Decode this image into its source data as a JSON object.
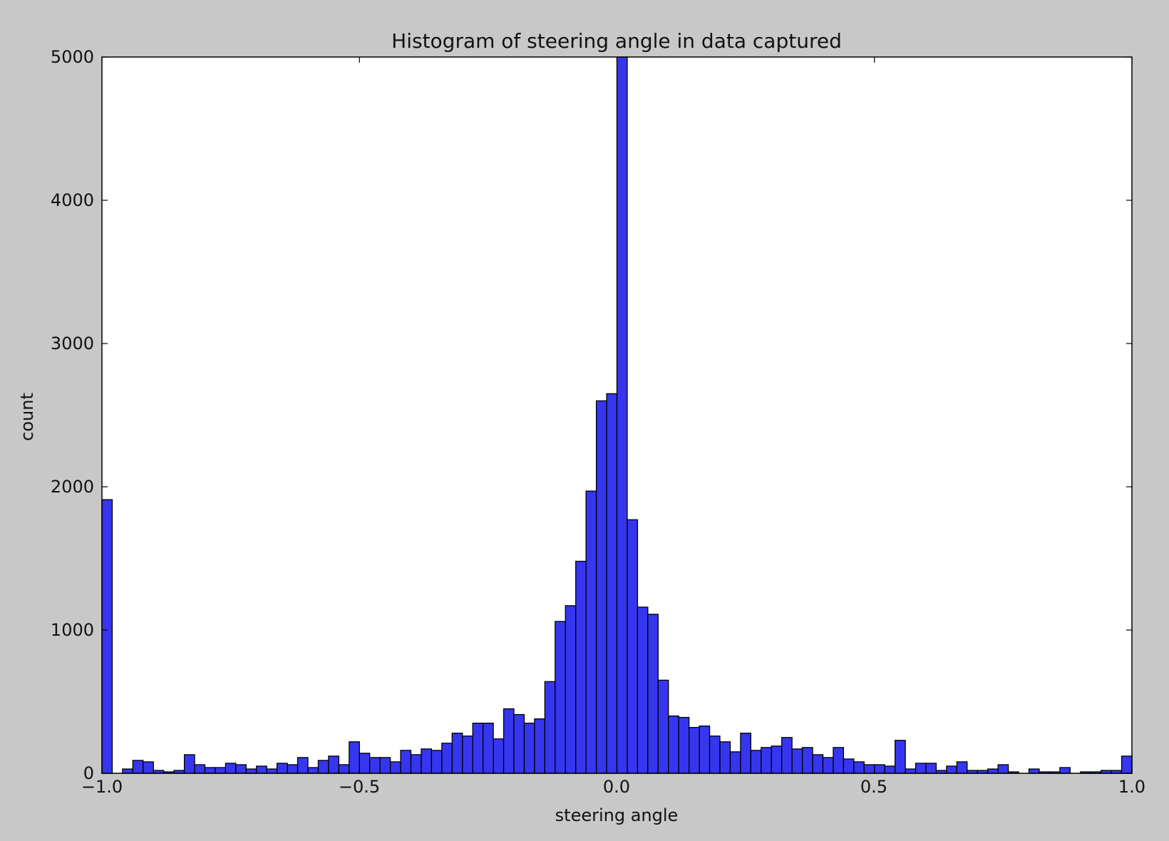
{
  "chart_data": {
    "type": "bar",
    "title": "Histogram of steering angle in data captured",
    "xlabel": "steering angle",
    "ylabel": "count",
    "xlim": [
      -1.0,
      1.0
    ],
    "ylim": [
      0,
      5000
    ],
    "xticks": [
      "−1.0",
      "−0.5",
      "0.0",
      "0.5",
      "1.0"
    ],
    "yticks": [
      "0",
      "1000",
      "2000",
      "3000",
      "4000",
      "5000"
    ],
    "grid": false,
    "bar_color": "#3636f0",
    "bin_width": 0.02,
    "x": [
      -0.99,
      -0.97,
      -0.95,
      -0.93,
      -0.91,
      -0.89,
      -0.87,
      -0.85,
      -0.83,
      -0.81,
      -0.79,
      -0.77,
      -0.75,
      -0.73,
      -0.71,
      -0.69,
      -0.67,
      -0.65,
      -0.63,
      -0.61,
      -0.59,
      -0.57,
      -0.55,
      -0.53,
      -0.51,
      -0.49,
      -0.47,
      -0.45,
      -0.43,
      -0.41,
      -0.39,
      -0.37,
      -0.35,
      -0.33,
      -0.31,
      -0.29,
      -0.27,
      -0.25,
      -0.23,
      -0.21,
      -0.19,
      -0.17,
      -0.15,
      -0.13,
      -0.11,
      -0.09,
      -0.07,
      -0.05,
      -0.03,
      -0.01,
      0.01,
      0.03,
      0.05,
      0.07,
      0.09,
      0.11,
      0.13,
      0.15,
      0.17,
      0.19,
      0.21,
      0.23,
      0.25,
      0.27,
      0.29,
      0.31,
      0.33,
      0.35,
      0.37,
      0.39,
      0.41,
      0.43,
      0.45,
      0.47,
      0.49,
      0.51,
      0.53,
      0.55,
      0.57,
      0.59,
      0.61,
      0.63,
      0.65,
      0.67,
      0.69,
      0.71,
      0.73,
      0.75,
      0.77,
      0.79,
      0.81,
      0.83,
      0.85,
      0.87,
      0.89,
      0.91,
      0.93,
      0.95,
      0.97,
      0.99
    ],
    "values": [
      1910,
      0,
      30,
      90,
      80,
      20,
      10,
      20,
      130,
      60,
      40,
      40,
      70,
      60,
      30,
      50,
      30,
      70,
      60,
      110,
      40,
      90,
      120,
      60,
      220,
      140,
      110,
      110,
      80,
      160,
      130,
      170,
      160,
      210,
      280,
      260,
      350,
      350,
      240,
      450,
      410,
      350,
      380,
      640,
      1060,
      1170,
      1480,
      1970,
      2600,
      2650,
      5000,
      1770,
      1160,
      1110,
      650,
      400,
      390,
      320,
      330,
      260,
      220,
      150,
      280,
      160,
      180,
      190,
      250,
      170,
      180,
      130,
      110,
      180,
      100,
      80,
      60,
      60,
      50,
      230,
      30,
      70,
      70,
      20,
      50,
      80,
      20,
      20,
      30,
      60,
      10,
      0,
      30,
      10,
      10,
      40,
      0,
      10,
      10,
      20,
      20,
      120
    ]
  }
}
